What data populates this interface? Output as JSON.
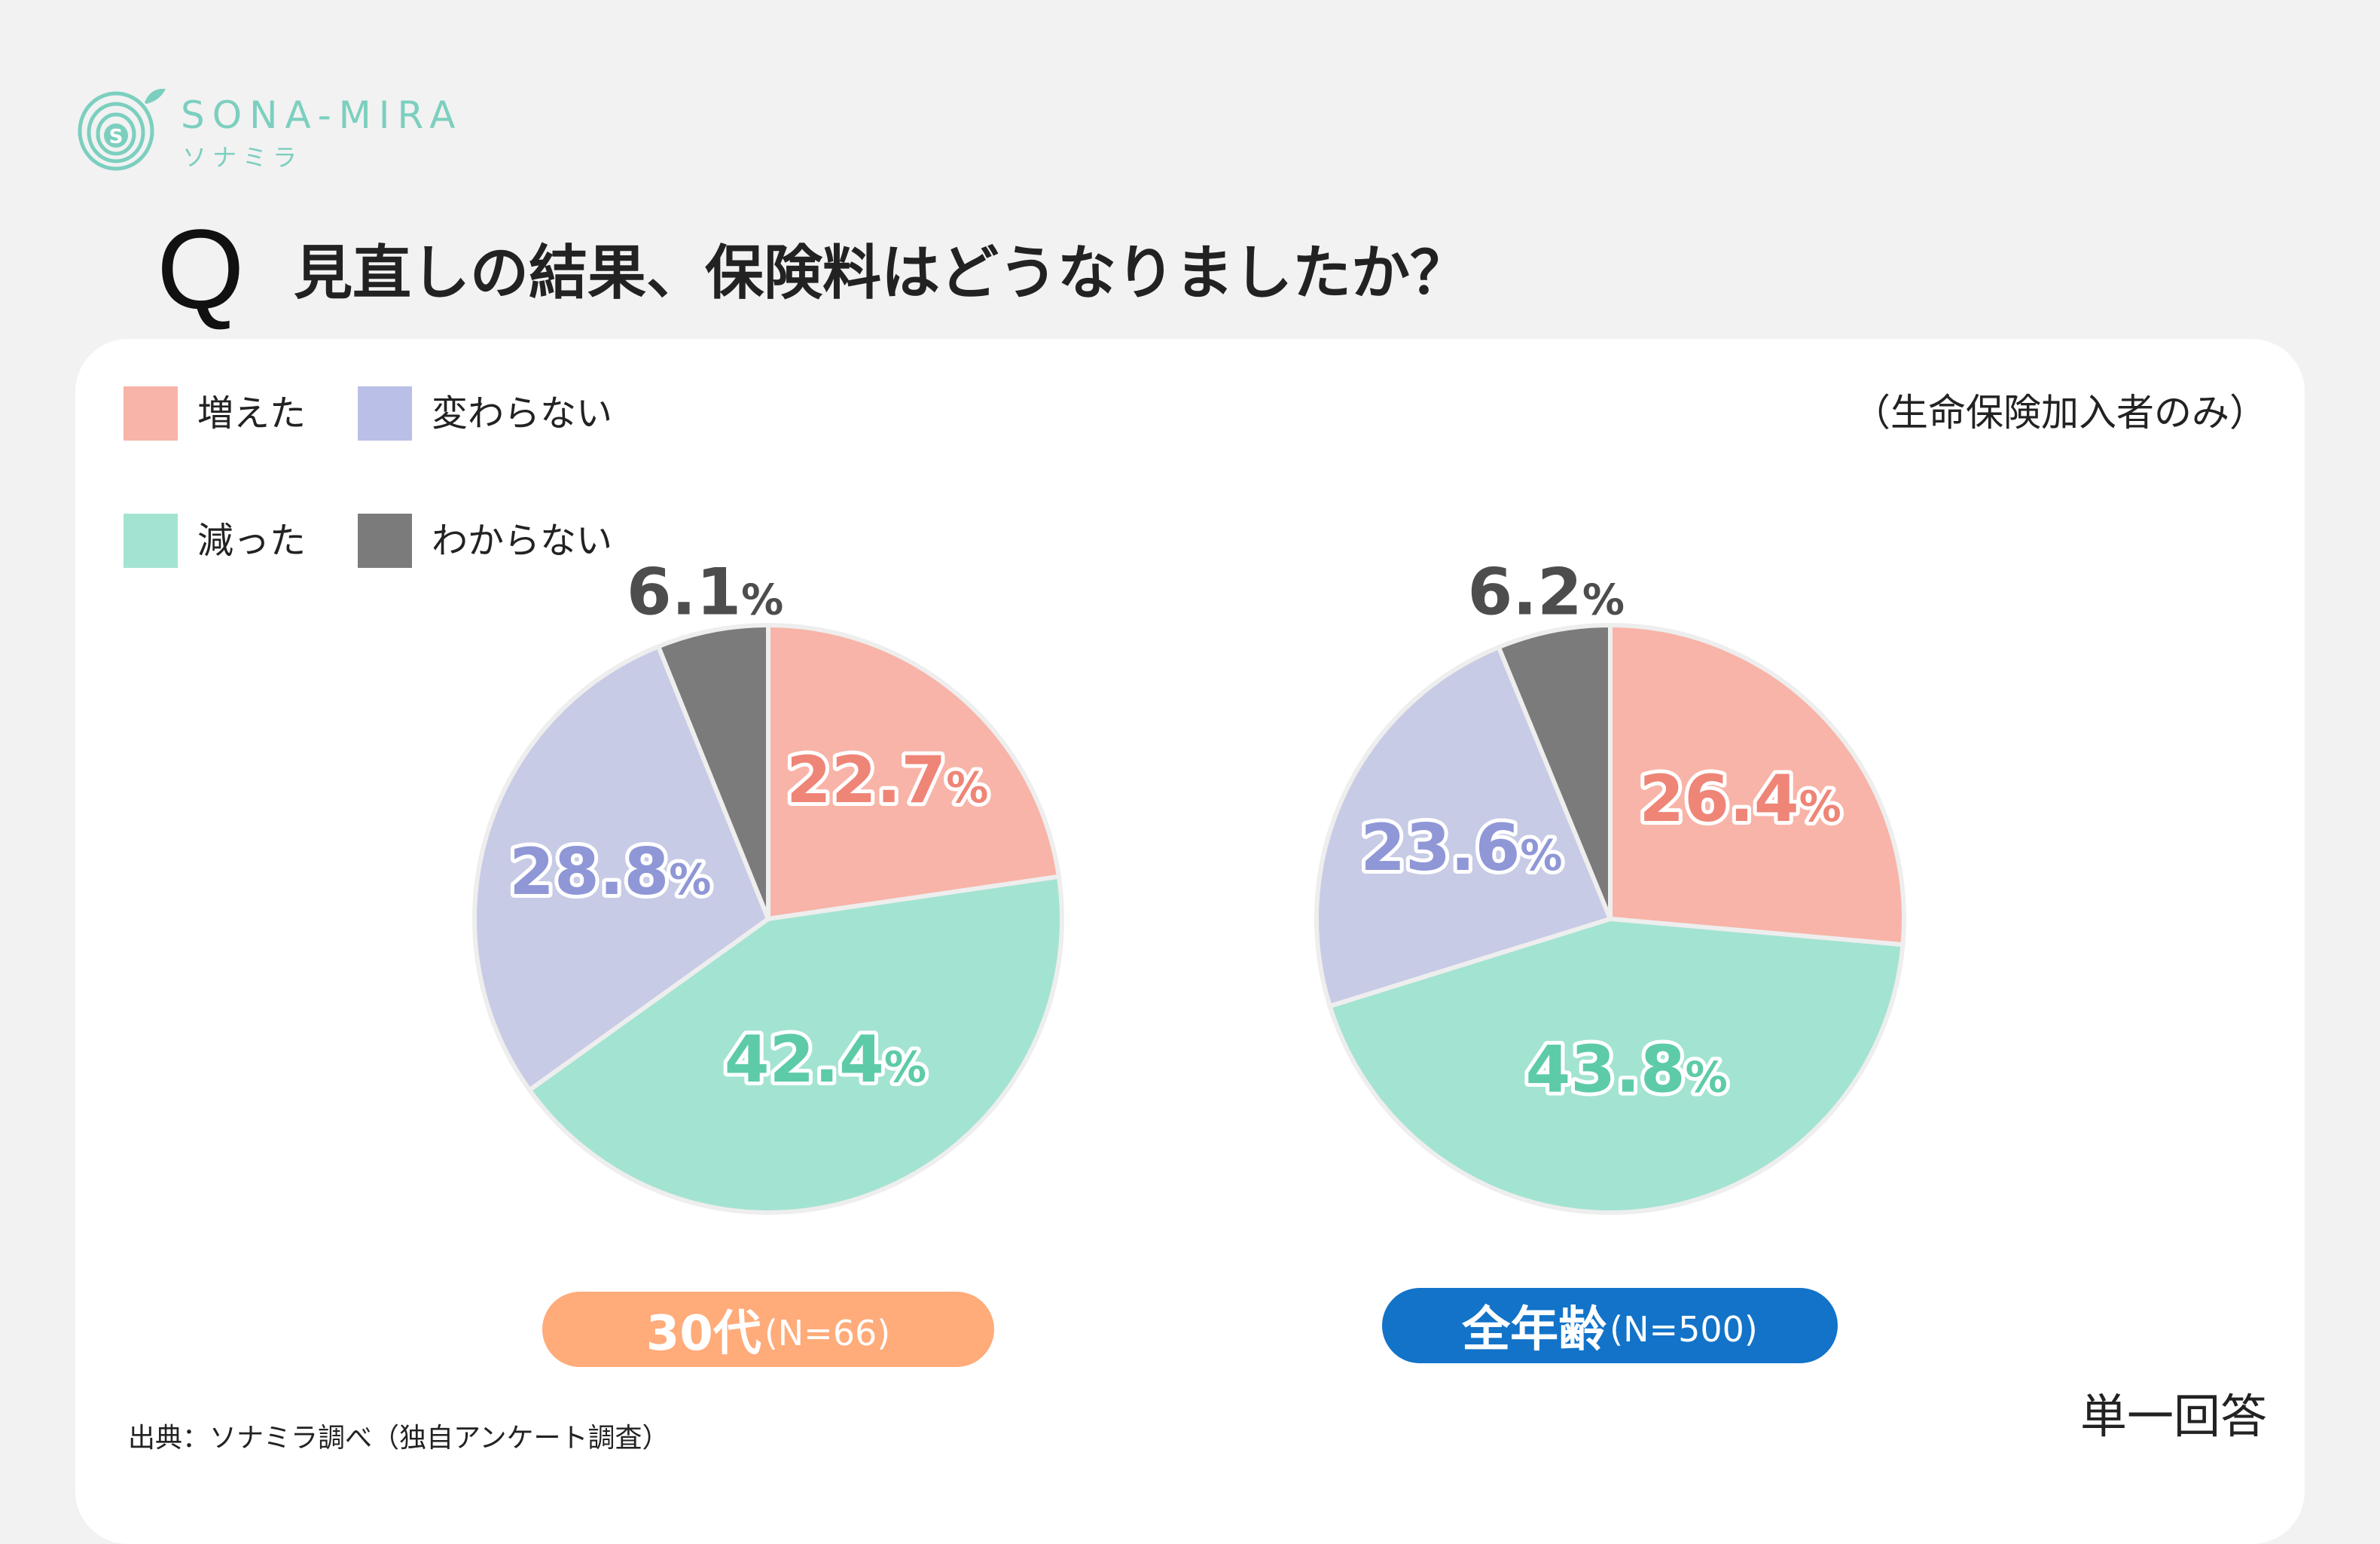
{
  "brand": {
    "name": "SONA-MIRA",
    "name_kana": "ソナミラ",
    "color": "#7ccfbf"
  },
  "question": {
    "mark": "Q",
    "text": "見直しの結果、保険料はどうなりましたか？"
  },
  "note": "（生命保険加入者のみ）",
  "legend": [
    {
      "label": "増えた",
      "color": "#f8b4a8"
    },
    {
      "label": "変わらない",
      "color": "#b9bfe6"
    },
    {
      "label": "減った",
      "color": "#a3e3d2"
    },
    {
      "label": "わからない",
      "color": "#7b7b7b"
    }
  ],
  "chart_data": [
    {
      "type": "pie",
      "title": "30代",
      "sample": "(N=66)",
      "title_color": "#ffab7a",
      "slices": [
        {
          "label": "増えた",
          "value": 22.7,
          "display": "22.7",
          "color": "#f8b4a8",
          "text_color": "#ee8577"
        },
        {
          "label": "減った",
          "value": 42.4,
          "display": "42.4",
          "color": "#a3e3d2",
          "text_color": "#5ecba8"
        },
        {
          "label": "変わらない",
          "value": 28.8,
          "display": "28.8",
          "color": "#c8cbe5",
          "text_color": "#8f97d6"
        },
        {
          "label": "わからない",
          "value": 6.1,
          "display": "6.1",
          "color": "#7b7b7b",
          "text_color": "#4d4d4d"
        }
      ]
    },
    {
      "type": "pie",
      "title": "全年齢",
      "sample": "(N=500)",
      "title_color": "#1273c9",
      "slices": [
        {
          "label": "増えた",
          "value": 26.4,
          "display": "26.4",
          "color": "#f8b4a8",
          "text_color": "#ee8577"
        },
        {
          "label": "減った",
          "value": 43.8,
          "display": "43.8",
          "color": "#a3e3d2",
          "text_color": "#5ecba8"
        },
        {
          "label": "変わらない",
          "value": 23.6,
          "display": "23.6",
          "color": "#c8cbe5",
          "text_color": "#8f97d6"
        },
        {
          "label": "わからない",
          "value": 6.2,
          "display": "6.2",
          "color": "#7b7b7b",
          "text_color": "#4d4d4d"
        }
      ]
    }
  ],
  "percent_sign": "%",
  "source": "出典：ソナミラ調べ（独自アンケート調査）",
  "answer_type": "単一回答"
}
